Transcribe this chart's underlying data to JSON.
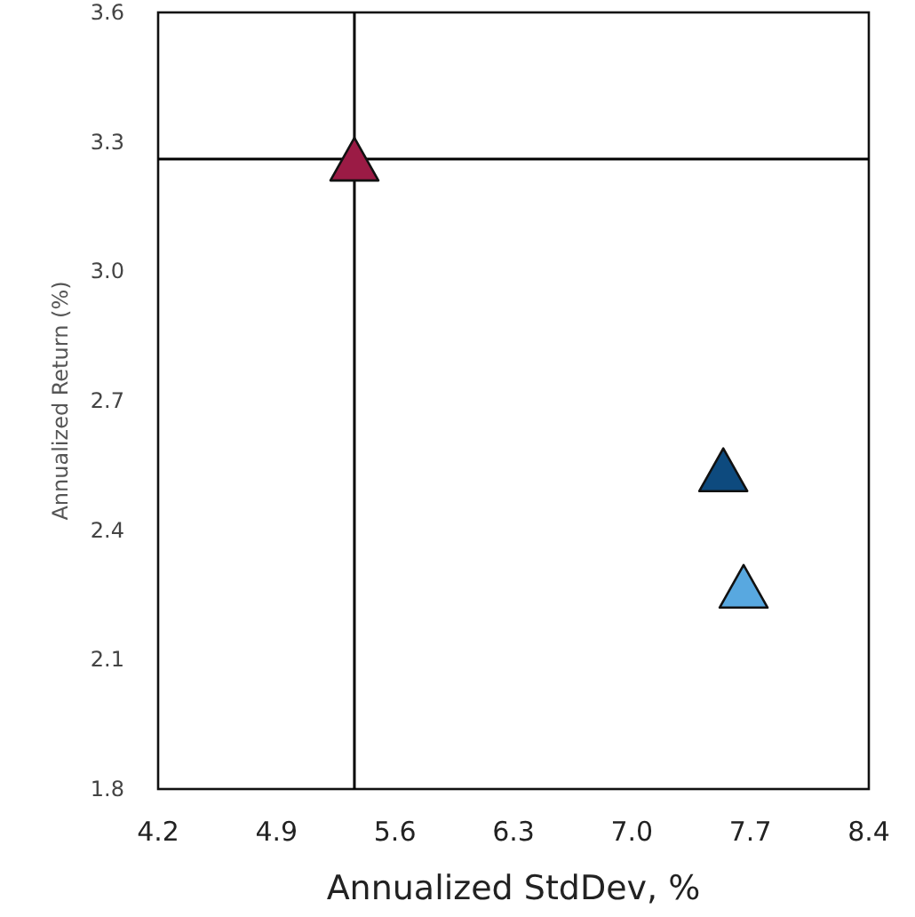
{
  "chart_data": {
    "type": "scatter",
    "xlabel": "Annualized StdDev, %",
    "ylabel": "Annualized Return (%)",
    "x": [
      5.36,
      7.54,
      7.66
    ],
    "values": [
      3.26,
      2.54,
      2.27
    ],
    "colors": [
      "#9b1b45",
      "#0d4a7e",
      "#58a8e0"
    ],
    "marker": "triangle",
    "grid": false,
    "xlim": [
      4.2,
      8.4
    ],
    "xticks": [
      {
        "value": 4.2,
        "label": "4.2"
      },
      {
        "value": 4.9,
        "label": "4.9"
      },
      {
        "value": 5.6,
        "label": "5.6"
      },
      {
        "value": 6.3,
        "label": "6.3"
      },
      {
        "value": 7.0,
        "label": "7.0"
      },
      {
        "value": 7.7,
        "label": "7.7"
      },
      {
        "value": 8.4,
        "label": "8.4"
      }
    ],
    "ylim": [
      1.8,
      3.6
    ],
    "yticks": [
      {
        "value": 1.8,
        "label": "1.8"
      },
      {
        "value": 2.1,
        "label": "2.1"
      },
      {
        "value": 2.4,
        "label": "2.4"
      },
      {
        "value": 2.7,
        "label": "2.7"
      },
      {
        "value": 3.0,
        "label": "3.0"
      },
      {
        "value": 3.3,
        "label": "3.3"
      },
      {
        "value": 3.6,
        "label": "3.6"
      }
    ],
    "ref_lines": [
      {
        "axis": "x",
        "value": 5.36,
        "color": "#000000"
      },
      {
        "axis": "y",
        "value": 3.26,
        "color": "#000000"
      }
    ]
  }
}
